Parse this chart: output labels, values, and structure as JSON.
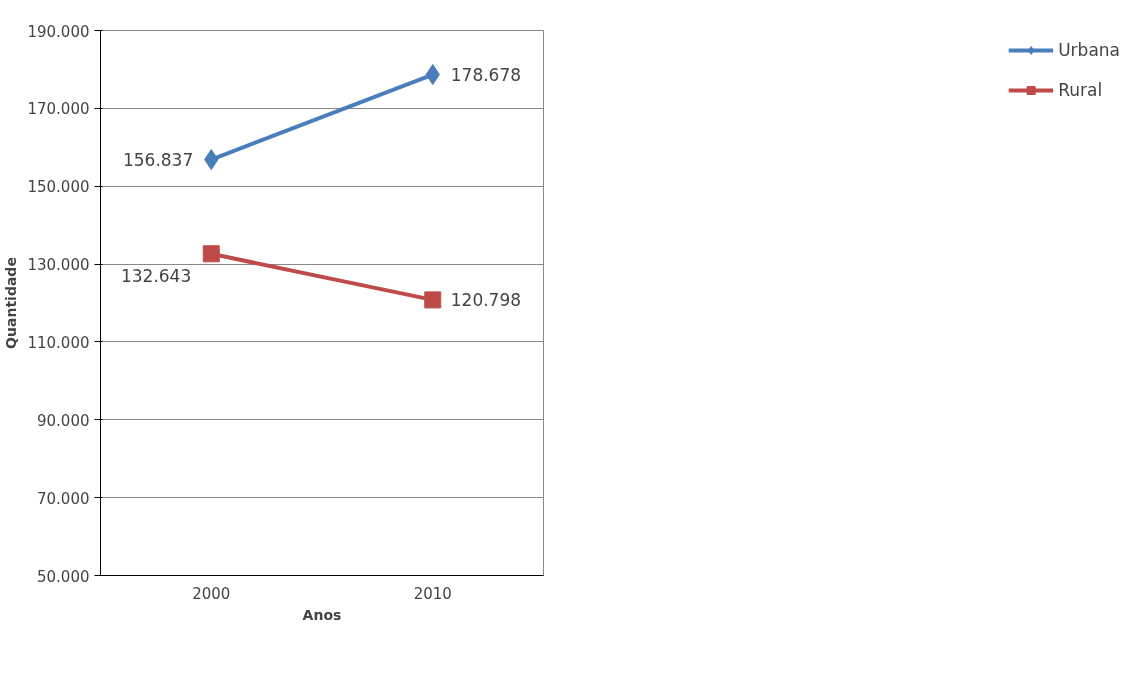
{
  "chart_data": {
    "type": "line",
    "xlabel": "Anos",
    "ylabel": "Quantidade",
    "categories": [
      "2000",
      "2010"
    ],
    "series": [
      {
        "name": "Urbana",
        "color": "#4a7ebb",
        "marker": "diamond",
        "values": [
          156837,
          178678
        ],
        "value_labels": [
          "156.837",
          "178.678"
        ]
      },
      {
        "name": "Rural",
        "color": "#be4b48",
        "marker": "square",
        "values": [
          132643,
          120798
        ],
        "value_labels": [
          "132.643",
          "120.798"
        ]
      }
    ],
    "ylim": [
      50000,
      190000
    ],
    "yticks": [
      {
        "value": 50000,
        "label": "50.000"
      },
      {
        "value": 70000,
        "label": "70.000"
      },
      {
        "value": 90000,
        "label": "90.000"
      },
      {
        "value": 110000,
        "label": "110.000"
      },
      {
        "value": 130000,
        "label": "130.000"
      },
      {
        "value": 150000,
        "label": "150.000"
      },
      {
        "value": 170000,
        "label": "170.000"
      },
      {
        "value": 190000,
        "label": "190.000"
      }
    ],
    "grid": "y",
    "legend": "right",
    "line_style": "solid"
  }
}
